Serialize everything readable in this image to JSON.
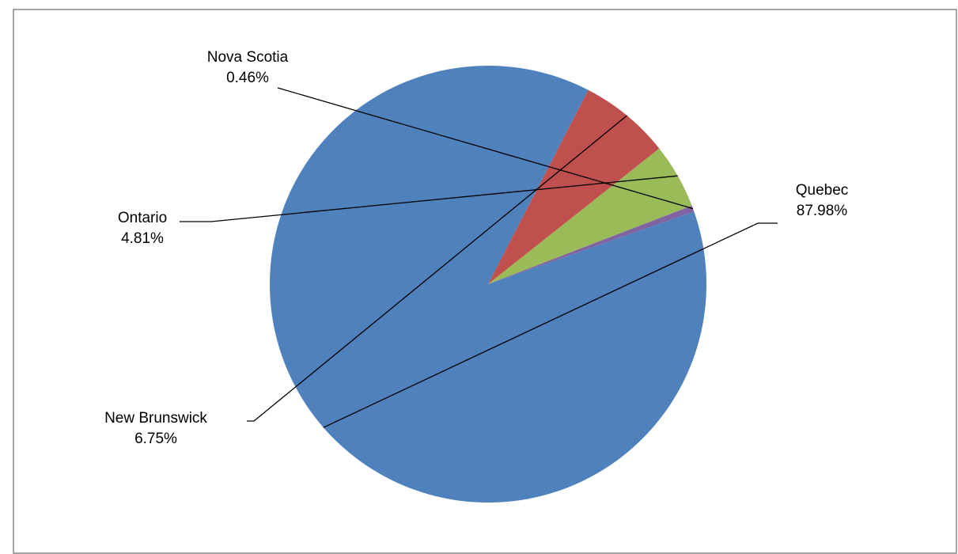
{
  "chart_data": {
    "type": "pie",
    "title": "",
    "categories": [
      "Quebec",
      "New Brunswick",
      "Ontario",
      "Nova Scotia"
    ],
    "values": [
      87.98,
      6.75,
      4.81,
      0.46
    ],
    "value_labels": [
      "87.98%",
      "6.75%",
      "4.81%",
      "0.46%"
    ],
    "colors": [
      "#4F81BD",
      "#C0504D",
      "#9BBB59",
      "#8064A2"
    ],
    "legend": "none",
    "data_labels": "outside-with-leader-lines"
  }
}
